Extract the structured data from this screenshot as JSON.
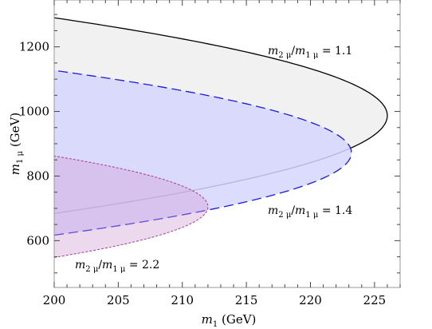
{
  "chart_data": {
    "type": "area",
    "xlabel": {
      "var": "m",
      "sub": "1",
      "unit": " (GeV)"
    },
    "ylabel": {
      "var": "m",
      "sub": "1 μ",
      "unit": " (GeV)"
    },
    "xlim": [
      200,
      227
    ],
    "ylim": [
      455,
      1345
    ],
    "xticks": [
      200,
      205,
      210,
      215,
      220,
      225
    ],
    "yticks": [
      600,
      800,
      1000,
      1200
    ],
    "grid": false,
    "series": [
      {
        "name": "m2μ/m1μ = 1.1",
        "fill": "#f1f1f1",
        "stroke": "#000000",
        "dash": "",
        "stroke_width": 1.3,
        "label": {
          "num_sub": "2 μ",
          "den_sub": "1 μ",
          "value": " = 1.1"
        },
        "center_y": 987,
        "half_height": 303,
        "tip_x": 226.0
      },
      {
        "name": "m2μ/m1μ = 1.4",
        "fill": "#d6d6ff",
        "fill_opacity": 0.85,
        "stroke": "#1a1add",
        "dash": "12,6",
        "stroke_width": 1.3,
        "label": {
          "num_sub": "2 μ",
          "den_sub": "1 μ",
          "value": " = 1.4"
        },
        "center_y": 872,
        "half_height": 255,
        "tip_x": 223.2
      },
      {
        "name": "m2μ/m1μ = 2.2",
        "fill": "#cf9ccf",
        "fill_opacity": 0.38,
        "stroke": "#a23aa2",
        "dash": "3,2",
        "stroke_width": 1.0,
        "label": {
          "num_sub": "2 μ",
          "den_sub": "1 μ",
          "value": " = 2.2"
        },
        "center_y": 705,
        "half_height": 157,
        "tip_x": 212.0
      }
    ]
  }
}
